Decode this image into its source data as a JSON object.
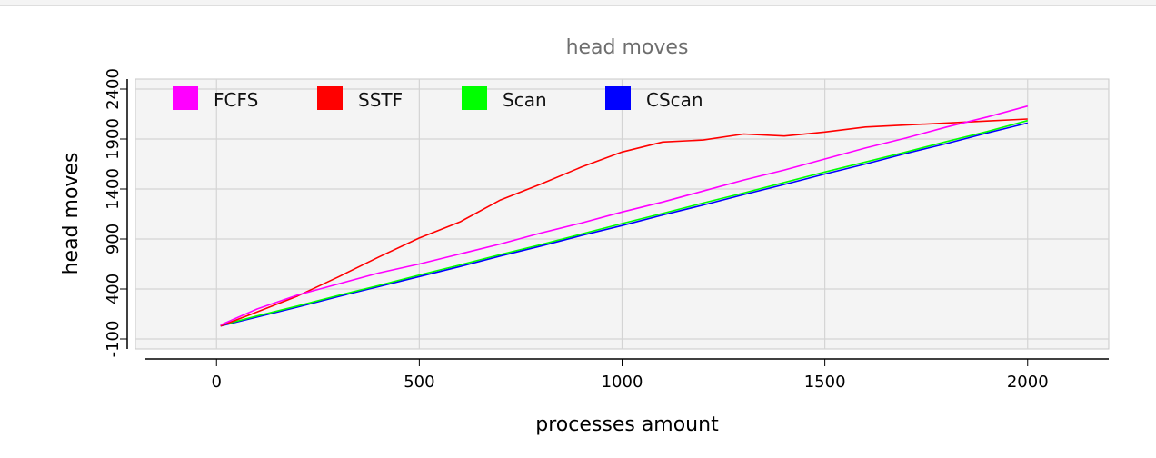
{
  "chart_data": {
    "type": "line",
    "title": "head moves",
    "xlabel": "processes amount",
    "ylabel": "head moves",
    "xlim": [
      -200,
      2200
    ],
    "ylim": [
      -200,
      2500
    ],
    "x_ticks": [
      0,
      500,
      1000,
      1500,
      2000
    ],
    "y_ticks": [
      -100,
      400,
      900,
      1400,
      1900,
      2400
    ],
    "grid": true,
    "legend_position": "top-left",
    "series": [
      {
        "name": "FCFS",
        "color": "#ff00ff",
        "x": [
          10,
          100,
          200,
          300,
          400,
          500,
          600,
          700,
          800,
          900,
          1000,
          1100,
          1200,
          1300,
          1400,
          1500,
          1600,
          1700,
          1800,
          1900,
          2000
        ],
        "y": [
          40,
          200,
          340,
          450,
          560,
          650,
          750,
          850,
          960,
          1060,
          1170,
          1270,
          1380,
          1490,
          1590,
          1700,
          1810,
          1910,
          2020,
          2120,
          2230
        ]
      },
      {
        "name": "SSTF",
        "color": "#ff0000",
        "x": [
          10,
          100,
          200,
          300,
          400,
          500,
          600,
          700,
          800,
          900,
          1000,
          1100,
          1200,
          1300,
          1400,
          1500,
          1600,
          1700,
          1800,
          1900,
          2000
        ],
        "y": [
          30,
          170,
          330,
          520,
          720,
          910,
          1070,
          1290,
          1450,
          1620,
          1770,
          1870,
          1890,
          1950,
          1930,
          1970,
          2020,
          2040,
          2060,
          2080,
          2100
        ]
      },
      {
        "name": "Scan",
        "color": "#00ff00",
        "x": [
          10,
          100,
          200,
          300,
          400,
          500,
          600,
          700,
          800,
          900,
          1000,
          1100,
          1200,
          1300,
          1400,
          1500,
          1600,
          1700,
          1800,
          1900,
          2000
        ],
        "y": [
          35,
          130,
          230,
          335,
          435,
          540,
          640,
          745,
          845,
          950,
          1055,
          1155,
          1260,
          1360,
          1465,
          1570,
          1670,
          1770,
          1875,
          1975,
          2085
        ]
      },
      {
        "name": "CScan",
        "color": "#0000ff",
        "x": [
          10,
          100,
          200,
          300,
          400,
          500,
          600,
          700,
          800,
          900,
          1000,
          1100,
          1200,
          1300,
          1400,
          1500,
          1600,
          1700,
          1800,
          1900,
          2000
        ],
        "y": [
          30,
          120,
          220,
          325,
          425,
          525,
          625,
          730,
          830,
          935,
          1035,
          1140,
          1240,
          1345,
          1445,
          1550,
          1650,
          1755,
          1855,
          1960,
          2060
        ]
      }
    ]
  }
}
